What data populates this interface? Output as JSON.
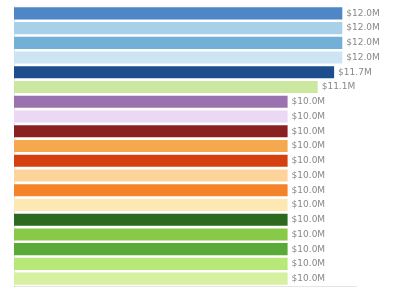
{
  "chart_data": {
    "type": "bar",
    "orientation": "horizontal",
    "categories": [
      null,
      null,
      null,
      null,
      null,
      null,
      null,
      null,
      null,
      null,
      null,
      null,
      null,
      null,
      null,
      null,
      null,
      null,
      null
    ],
    "values": [
      12.0,
      12.0,
      12.0,
      12.0,
      11.7,
      11.1,
      10.0,
      10.0,
      10.0,
      10.0,
      10.0,
      10.0,
      10.0,
      10.0,
      10.0,
      10.0,
      10.0,
      10.0,
      10.0
    ],
    "value_labels": [
      "$12.0M",
      "$12.0M",
      "$12.0M",
      "$12.0M",
      "$11.7M",
      "$11.1M",
      "$10.0M",
      "$10.0M",
      "$10.0M",
      "$10.0M",
      "$10.0M",
      "$10.0M",
      "$10.0M",
      "$10.0M",
      "$10.0M",
      "$10.0M",
      "$10.0M",
      "$10.0M",
      "$10.0M"
    ],
    "colors": [
      "#4f86c6",
      "#a8d0e8",
      "#72b0d8",
      "#cde4f4",
      "#1e4d8c",
      "#cce8a0",
      "#9b72b0",
      "#ead8f5",
      "#8b2020",
      "#f5a84e",
      "#d44010",
      "#fcd49a",
      "#f5832a",
      "#fde8b4",
      "#2d6a1f",
      "#88c948",
      "#5aaa38",
      "#b8e878",
      "#d4f0a0"
    ],
    "xlim": [
      0,
      12.5
    ],
    "data_labels": true,
    "tick_labels": false,
    "grid": false
  }
}
